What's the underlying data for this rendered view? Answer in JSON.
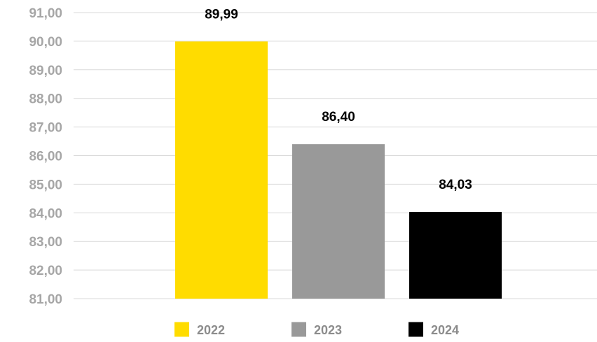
{
  "chart_data": {
    "type": "bar",
    "title": "",
    "xlabel": "",
    "ylabel": "",
    "categories": [
      "2022",
      "2023",
      "2024"
    ],
    "values": [
      89.99,
      86.4,
      84.03
    ],
    "value_labels": [
      "89,99",
      "86,40",
      "84,03"
    ],
    "colors": [
      "#FFDC00",
      "#999999",
      "#000000"
    ],
    "ylim": [
      81,
      91
    ],
    "y_ticks": [
      81,
      82,
      83,
      84,
      85,
      86,
      87,
      88,
      89,
      90,
      91
    ],
    "y_tick_labels": [
      "81,00",
      "82,00",
      "83,00",
      "84,00",
      "85,00",
      "86,00",
      "87,00",
      "88,00",
      "89,00",
      "90,00",
      "91,00"
    ],
    "grid": true,
    "legend": {
      "position": "bottom",
      "entries": [
        "2022",
        "2023",
        "2024"
      ]
    }
  }
}
